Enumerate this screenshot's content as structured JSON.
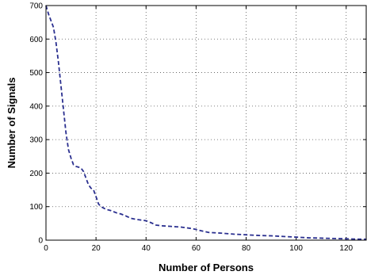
{
  "chart_data": {
    "type": "line",
    "title": "",
    "xlabel": "Number of Persons",
    "ylabel": "Number of Signals",
    "xlim": [
      0,
      128
    ],
    "ylim": [
      0,
      700
    ],
    "xticks": [
      0,
      20,
      40,
      60,
      80,
      100,
      120
    ],
    "yticks": [
      0,
      100,
      200,
      300,
      400,
      500,
      600,
      700
    ],
    "grid": true,
    "grid_style": "dotted",
    "line_color": "#2a2f8f",
    "line_style": "dashed",
    "series": [
      {
        "x": [
          0,
          1,
          2,
          3,
          4,
          5,
          6,
          7,
          8,
          9,
          10,
          11,
          12,
          13,
          14,
          15,
          16,
          17,
          18,
          19,
          20,
          21,
          22,
          24,
          26,
          28,
          30,
          32,
          34,
          36,
          38,
          40,
          42,
          44,
          46,
          48,
          50,
          52,
          54,
          56,
          58,
          60,
          62,
          65,
          70,
          75,
          80,
          85,
          90,
          95,
          100,
          105,
          110,
          115,
          120,
          125,
          128
        ],
        "y": [
          700,
          675,
          655,
          635,
          590,
          530,
          460,
          390,
          320,
          270,
          245,
          225,
          220,
          218,
          215,
          205,
          185,
          165,
          155,
          150,
          130,
          108,
          100,
          92,
          88,
          82,
          78,
          72,
          65,
          62,
          60,
          58,
          52,
          45,
          43,
          42,
          41,
          40,
          39,
          37,
          35,
          32,
          28,
          23,
          21,
          18,
          16,
          14,
          13,
          11,
          9,
          7,
          6,
          5,
          4,
          3,
          3
        ]
      }
    ]
  }
}
